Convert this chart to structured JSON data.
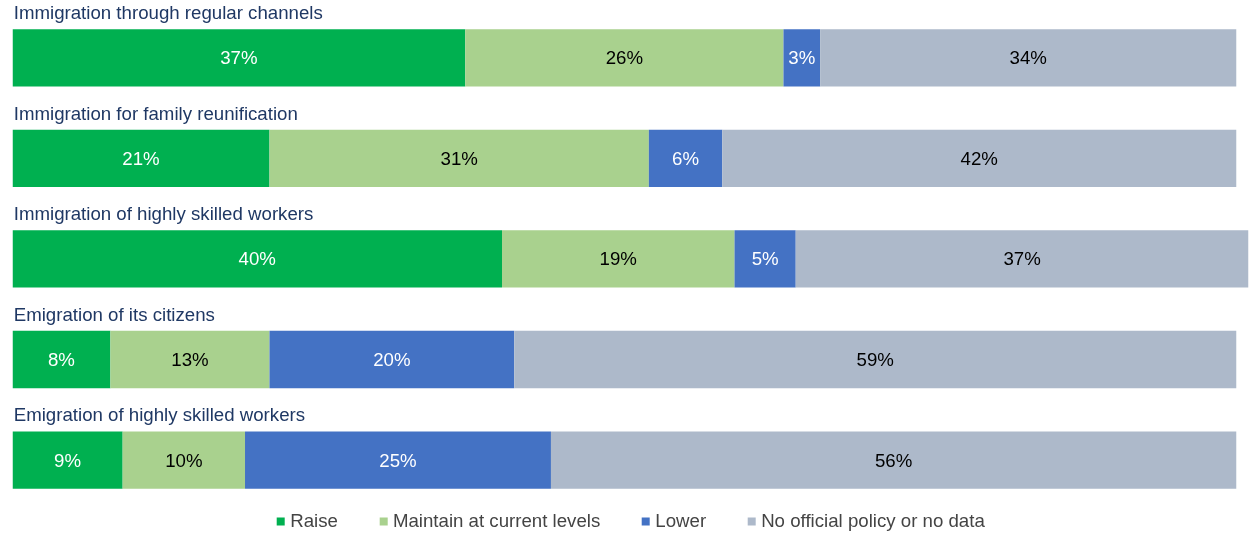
{
  "chart_data": {
    "type": "bar",
    "orientation": "horizontal",
    "stacked": true,
    "legend": "bottom",
    "grid": false,
    "categories": [
      "Immigration through regular channels",
      "Immigration for family reunification",
      "Immigration of highly skilled workers",
      "Emigration of its citizens",
      "Emigration of highly skilled workers"
    ],
    "series": [
      {
        "name": "Raise",
        "color": "#00b050",
        "values": [
          37,
          21,
          40,
          8,
          9
        ],
        "value_labels": [
          "37%",
          "21%",
          "40%",
          "8%",
          "9%"
        ]
      },
      {
        "name": "Maintain at current levels",
        "color": "#a9d18e",
        "values": [
          26,
          31,
          19,
          13,
          10
        ],
        "value_labels": [
          "26%",
          "31%",
          "19%",
          "13%",
          "10%"
        ]
      },
      {
        "name": "Lower",
        "color": "#4472c4",
        "values": [
          3,
          6,
          5,
          20,
          25
        ],
        "value_labels": [
          "3%",
          "6%",
          "5%",
          "20%",
          "25%"
        ]
      },
      {
        "name": "No official policy or no data",
        "color": "#adb9ca",
        "values": [
          34,
          42,
          37,
          59,
          56
        ],
        "value_labels": [
          "34%",
          "42%",
          "37%",
          "59%",
          "56%"
        ]
      }
    ]
  }
}
